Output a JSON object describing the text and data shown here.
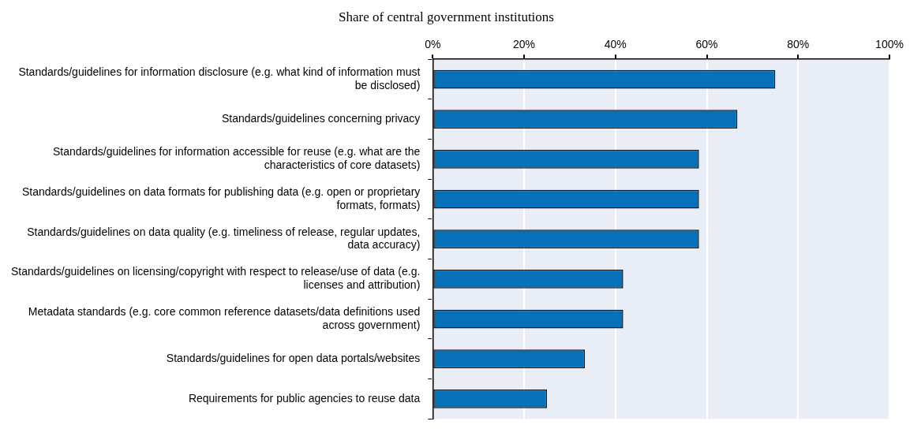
{
  "chart_data": {
    "type": "bar",
    "orientation": "horizontal",
    "title": "Share of central government institutions",
    "categories": [
      "Standards/guidelines for information disclosure (e.g. what kind of information must be disclosed)",
      "Standards/guidelines concerning privacy",
      "Standards/guidelines for information accessible for reuse (e.g. what are the characteristics of core datasets)",
      "Standards/guidelines on data formats for publishing data (e.g. open or proprietary formats, formats)",
      "Standards/guidelines on data quality (e.g. timeliness of release, regular updates, data accuracy)",
      "Standards/guidelines on licensing/copyright with respect to release/use of data (e.g. licenses and attribution)",
      "Metadata standards (e.g. core common reference datasets/data definitions used across government)",
      "Standards/guidelines for open data portals/websites",
      "Requirements for public agencies to reuse data"
    ],
    "values": [
      75,
      66.7,
      58.3,
      58.3,
      58.3,
      41.7,
      41.7,
      33.3,
      25
    ],
    "color": "#0670b8",
    "xlim": [
      0,
      100
    ],
    "xticks": [
      {
        "value": 0,
        "label": "0%"
      },
      {
        "value": 20,
        "label": "20%"
      },
      {
        "value": 40,
        "label": "40%"
      },
      {
        "value": 60,
        "label": "60%"
      },
      {
        "value": 80,
        "label": "80%"
      },
      {
        "value": 100,
        "label": "100%"
      }
    ],
    "grid": "x",
    "legend": false
  }
}
